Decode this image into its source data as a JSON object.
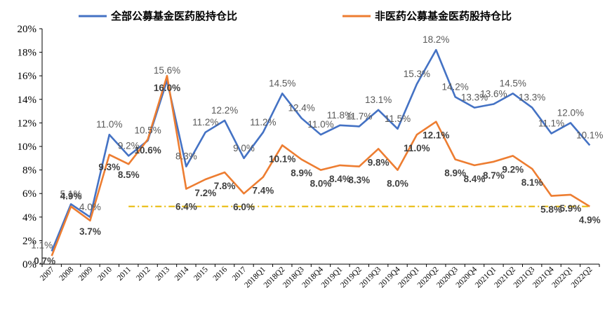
{
  "chart_data": {
    "type": "line",
    "categories": [
      "2007",
      "2008",
      "2009",
      "2010",
      "2011",
      "2012",
      "2013",
      "2014",
      "2015",
      "2016",
      "2017",
      "2018Q1",
      "2018Q2",
      "2018Q3",
      "2018Q4",
      "2019Q1",
      "2019Q2",
      "2019Q3",
      "2019Q4",
      "2020Q1",
      "2020Q2",
      "2020Q3",
      "2020Q4",
      "2021Q1",
      "2021Q2",
      "2021Q3",
      "2021Q4",
      "2022Q1",
      "2022Q2"
    ],
    "series": [
      {
        "name": "全部公募基金医药股持仓比",
        "color": "#4472C4",
        "values": [
          1.1,
          5.1,
          4.0,
          11.0,
          9.2,
          10.5,
          15.6,
          8.3,
          11.2,
          12.2,
          9.0,
          11.2,
          14.5,
          12.4,
          11.0,
          11.8,
          11.7,
          13.1,
          11.5,
          15.3,
          18.2,
          14.2,
          13.3,
          13.6,
          14.5,
          13.3,
          11.1,
          12.0,
          10.1
        ],
        "labels": [
          "1.1%",
          "5.1%",
          "4.0%",
          "11.0%",
          "9.2%",
          "10.5%",
          "15.6%",
          "8.3%",
          "11.2%",
          "12.2%",
          "9.0%",
          "11.2%",
          "14.5%",
          "12.4%",
          "11.0%",
          "11.8%",
          "11.7%",
          "13.1%",
          "11.5%",
          "15.3%",
          "18.2%",
          "14.2%",
          "13.3%",
          "13.6%",
          "14.5%",
          "13.3%",
          "11.1%",
          "12.0%",
          "10.1%"
        ]
      },
      {
        "name": "非医药公募基金医药股持仓比",
        "color": "#ED7D31",
        "values": [
          0.7,
          4.9,
          3.7,
          9.3,
          8.5,
          10.6,
          16.0,
          6.4,
          7.2,
          7.8,
          6.0,
          7.4,
          10.1,
          8.9,
          8.0,
          8.4,
          8.3,
          9.8,
          8.0,
          11.0,
          12.1,
          8.9,
          8.4,
          8.7,
          9.2,
          8.1,
          5.8,
          5.9,
          4.9
        ],
        "labels": [
          "0.7%",
          "4.9%",
          "3.7%",
          "9.3%",
          "8.5%",
          "10.6%",
          "16.0%",
          "6.4%",
          "7.2%",
          "7.8%",
          "6.0%",
          "7.4%",
          "10.1%",
          "8.9%",
          "8.0%",
          "8.4%",
          "8.3%",
          "9.8%",
          "8.0%",
          "11.0%",
          "12.1%",
          "8.9%",
          "8.4%",
          "8.7%",
          "9.2%",
          "8.1%",
          "5.8%",
          "5.9%",
          "4.9%"
        ]
      }
    ],
    "reference_line": {
      "value": 4.9,
      "color": "#E8B800",
      "style": "dash-dot"
    },
    "ylim": [
      0,
      20
    ],
    "yticks": [
      "0%",
      "2%",
      "4%",
      "6%",
      "8%",
      "10%",
      "12%",
      "14%",
      "16%",
      "18%",
      "20%"
    ],
    "yticks_values": [
      0,
      2,
      4,
      6,
      8,
      10,
      12,
      14,
      16,
      18,
      20
    ],
    "grid": false,
    "legend": "top"
  }
}
